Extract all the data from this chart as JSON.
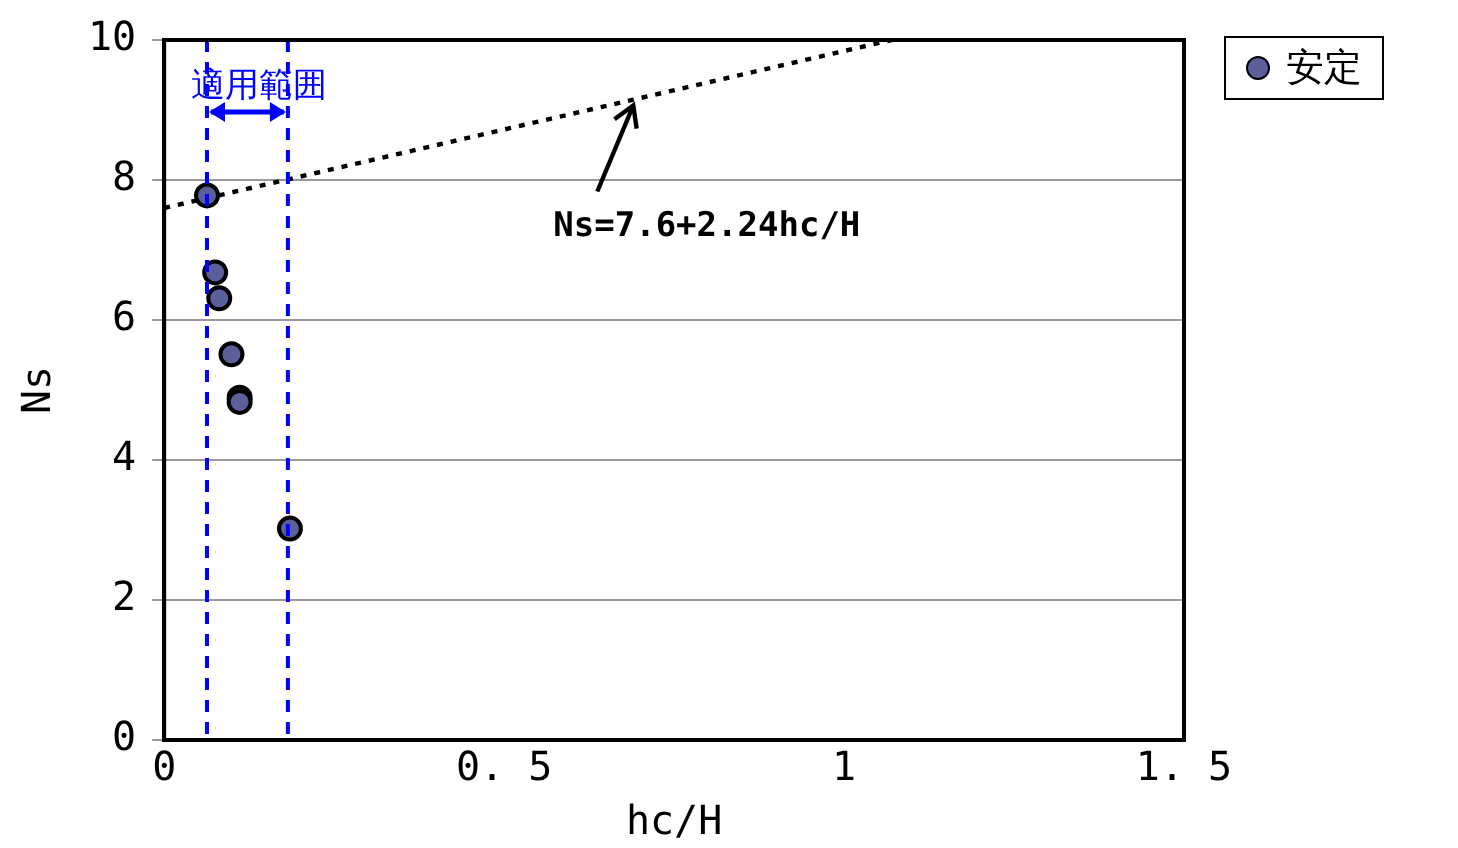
{
  "chart_data": {
    "type": "scatter",
    "xlabel": "hc/H",
    "ylabel": "Ns",
    "xlim": [
      0,
      1.5
    ],
    "xticks": [
      0,
      {
        "value": 0.5,
        "label": "0. 5"
      },
      1,
      {
        "value": 1.5,
        "label": "1. 5"
      }
    ],
    "ylim": [
      0,
      10
    ],
    "yticks": [
      0,
      2,
      4,
      6,
      8,
      10
    ],
    "grid": "y",
    "legend": "top right",
    "marker": "circle",
    "series": [
      {
        "name": "安定",
        "color": "#5b5f9a",
        "x": [
          0.063,
          0.075,
          0.081,
          0.099,
          0.111,
          0.111,
          0.185
        ],
        "values": [
          7.78,
          6.68,
          6.31,
          5.51,
          4.89,
          4.83,
          3.02
        ]
      },
      {
        "type": "line",
        "color": "#000000",
        "line_style": "dotted",
        "marker": "none",
        "x": [
          0,
          1.07
        ],
        "values": [
          7.6,
          10.0
        ]
      }
    ],
    "ref_lines": [
      {
        "axis": "x",
        "value": 0.063,
        "color": "#0000ff",
        "line_style": "dashed"
      },
      {
        "axis": "x",
        "value": 0.182,
        "color": "#0000ff",
        "line_style": "dashed"
      }
    ],
    "annotations": [
      "適用範囲",
      {
        "text": "Ns=7.6+2.24hc/H",
        "x": 0.69,
        "y": 9.15
      }
    ]
  }
}
